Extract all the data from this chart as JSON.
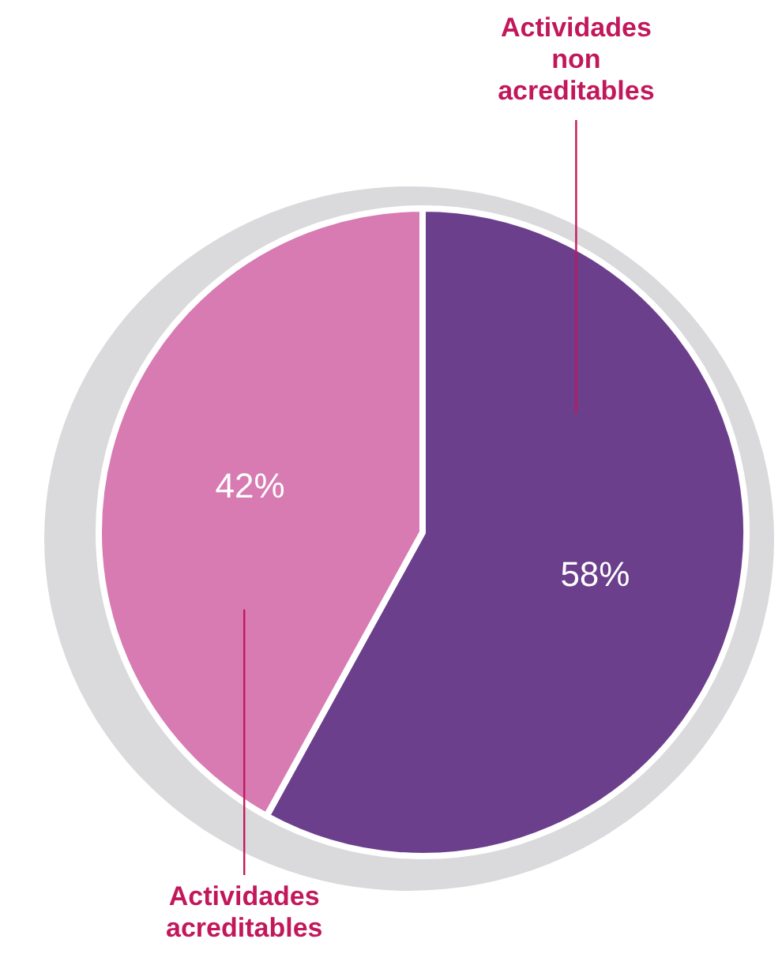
{
  "chart_data": {
    "type": "pie",
    "categories": [
      "Actividades non acreditables",
      "Actividades acreditables"
    ],
    "values": [
      58,
      42
    ],
    "colors": [
      "#6b3f8c",
      "#d77bb2"
    ],
    "value_labels": [
      "58%",
      "42%"
    ],
    "legend": false
  }
}
